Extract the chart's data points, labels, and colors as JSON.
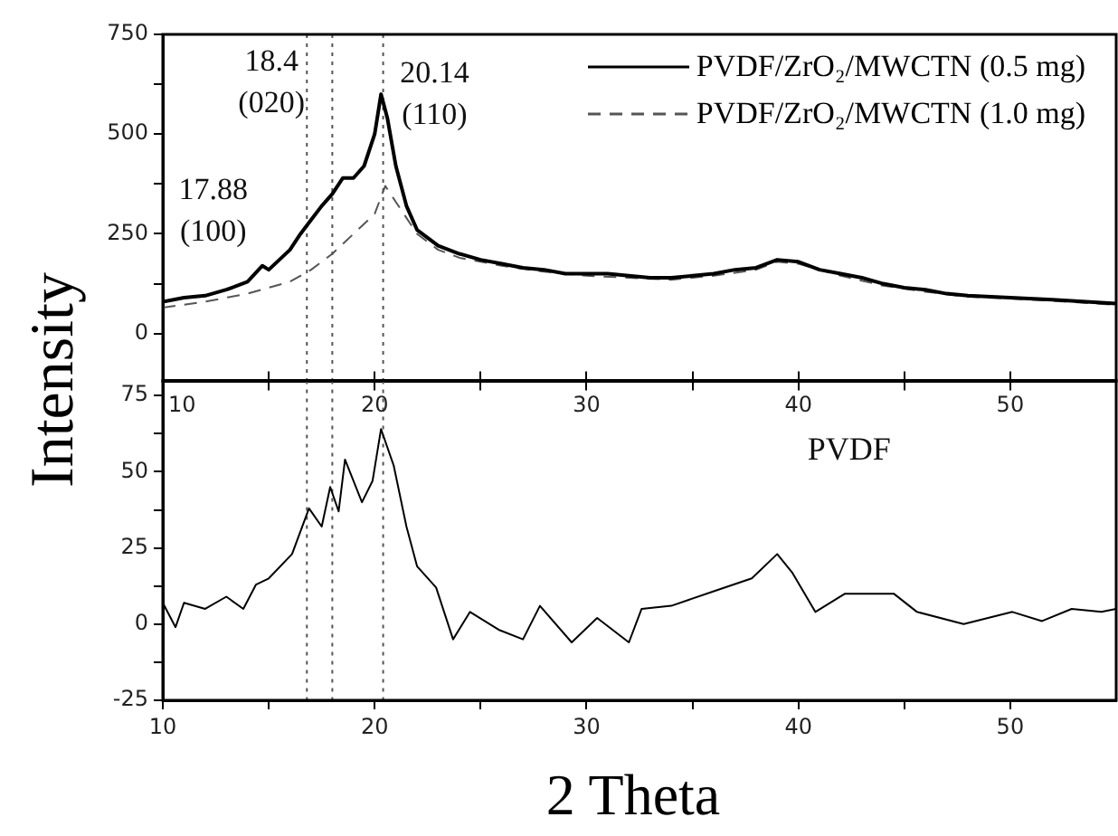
{
  "chart_data": [
    {
      "type": "line",
      "ylabel": "Intensity",
      "legend": "top right",
      "marker": "none",
      "grid": false,
      "tick_labels": "y",
      "xlim": [
        10,
        55
      ],
      "xticks": [
        10,
        {
          "value": 15,
          "label": null
        },
        20,
        {
          "value": 25,
          "label": null
        },
        30,
        {
          "value": 35,
          "label": null
        },
        40,
        {
          "value": 45,
          "label": null
        },
        50
      ],
      "ylim": [
        -120,
        750
      ],
      "yticks": [
        0,
        {
          "value": 125,
          "label": null
        },
        250,
        {
          "value": 375,
          "label": null
        },
        500,
        {
          "value": 625,
          "label": null
        },
        750
      ],
      "ref_lines": [
        {
          "axis": "x",
          "value": 16.8,
          "color": "#555555",
          "line_style": "dotted"
        },
        {
          "axis": "x",
          "value": 18.0,
          "color": "#555555",
          "line_style": "dotted"
        },
        {
          "axis": "x",
          "value": 20.4,
          "color": "#555555",
          "line_style": "dotted"
        }
      ],
      "annotations": [
        "17.88\n(100)",
        "18.4\n(020)",
        "20.14\n(110)"
      ],
      "series": [
        {
          "name": "PVDF/ZrO₂/MWCTN (0.5 mg)",
          "color": "#000000",
          "line_style": "solid",
          "x": [
            10,
            11,
            12,
            13,
            14,
            14.7,
            15,
            16,
            16.5,
            17,
            17.5,
            18,
            18.5,
            19,
            19.5,
            20,
            20.3,
            20.6,
            21,
            21.5,
            22,
            23,
            24,
            25,
            26,
            27,
            28,
            29,
            30,
            31,
            32,
            33,
            34,
            35,
            36,
            37,
            38,
            39,
            40,
            41,
            42,
            43,
            44,
            45,
            46,
            47,
            48,
            50,
            52,
            55
          ],
          "values": [
            80,
            90,
            95,
            110,
            130,
            170,
            160,
            210,
            250,
            285,
            320,
            350,
            390,
            390,
            420,
            500,
            600,
            540,
            420,
            320,
            260,
            220,
            200,
            185,
            175,
            165,
            160,
            150,
            150,
            150,
            145,
            140,
            140,
            145,
            150,
            160,
            165,
            185,
            180,
            160,
            150,
            140,
            125,
            115,
            110,
            100,
            95,
            90,
            85,
            75
          ]
        },
        {
          "name": "PVDF/ZrO₂/MWCTN (1.0 mg)",
          "color": "#555555",
          "line_style": "dashed",
          "x": [
            10,
            12,
            14,
            16,
            17,
            18,
            19,
            20,
            20.5,
            21,
            22,
            23,
            24,
            25,
            26,
            28,
            30,
            32,
            34,
            36,
            38,
            39,
            40,
            42,
            44,
            46,
            48,
            50,
            52,
            55
          ],
          "values": [
            65,
            80,
            100,
            130,
            160,
            200,
            250,
            300,
            370,
            330,
            250,
            210,
            190,
            180,
            170,
            155,
            145,
            140,
            135,
            145,
            160,
            180,
            175,
            145,
            120,
            105,
            92,
            88,
            82,
            72
          ]
        }
      ]
    },
    {
      "type": "line",
      "xlabel": "2 Theta",
      "marker": "none",
      "grid": false,
      "xlim": [
        10,
        55
      ],
      "xticks": [
        10,
        {
          "value": 15,
          "label": null
        },
        20,
        {
          "value": 25,
          "label": null
        },
        30,
        {
          "value": 35,
          "label": null
        },
        40,
        {
          "value": 45,
          "label": null
        },
        50
      ],
      "x2lim": [
        10,
        55
      ],
      "x2ticks": [
        10,
        {
          "value": 15,
          "label": null
        },
        20,
        {
          "value": 25,
          "label": null
        },
        30,
        {
          "value": 35,
          "label": null
        },
        40,
        {
          "value": 45,
          "label": null
        },
        50
      ],
      "ylim": [
        -25,
        80
      ],
      "yticks": [
        -25,
        {
          "value": -12.5,
          "label": null
        },
        0,
        {
          "value": 12.5,
          "label": null
        },
        25,
        {
          "value": 37.5,
          "label": null
        },
        50,
        {
          "value": 62.5,
          "label": null
        },
        75
      ],
      "ref_lines": [
        {
          "axis": "x",
          "value": 16.8,
          "color": "#555555",
          "line_style": "dotted"
        },
        {
          "axis": "x",
          "value": 18.0,
          "color": "#555555",
          "line_style": "dotted"
        },
        {
          "axis": "x",
          "value": 20.4,
          "color": "#555555",
          "line_style": "dotted"
        }
      ],
      "series": [
        {
          "name": "PVDF",
          "color": "#000000",
          "x": [
            10,
            10.6,
            11,
            12,
            13,
            13.8,
            14.4,
            15,
            16.1,
            16.9,
            17.5,
            17.9,
            18.3,
            18.6,
            19.4,
            19.9,
            20.3,
            20.9,
            21.5,
            22,
            22.9,
            23.7,
            24.5,
            25.9,
            27,
            27.8,
            29.3,
            30.5,
            32,
            32.6,
            34,
            36.1,
            37.8,
            39,
            39.7,
            40.8,
            42.2,
            44.5,
            45.6,
            47.8,
            50.1,
            51.5,
            52.9,
            54.3,
            55
          ],
          "values": [
            7,
            -1,
            7,
            5,
            9,
            5,
            13,
            15,
            23,
            38,
            32,
            45,
            37,
            54,
            40,
            47,
            64,
            52,
            32,
            19,
            12,
            -5,
            4,
            -2,
            -5,
            6,
            -6,
            2,
            -6,
            5,
            6,
            11,
            15,
            23,
            17,
            4,
            10,
            10,
            4,
            0,
            4,
            1,
            5,
            4,
            5
          ]
        }
      ]
    }
  ]
}
